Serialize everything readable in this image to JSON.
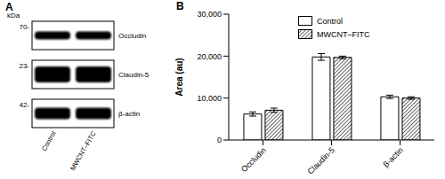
{
  "panel_a": {
    "label": "A",
    "unit": "kDa",
    "rows": [
      {
        "size": "70-",
        "protein": "Occludin"
      },
      {
        "size": "23-",
        "protein": "Claudin-5"
      },
      {
        "size": "42-",
        "protein": "β-actin"
      }
    ],
    "lanes": [
      "Control",
      "MWCNT–FITC"
    ]
  },
  "chart_data": {
    "type": "bar",
    "title": "B",
    "y_label": "Area (au)",
    "categories": [
      "Occludin",
      "Claudin-5",
      "β-actin"
    ],
    "series": [
      {
        "name": "Control",
        "color": "#ffffff",
        "values": [
          6200,
          19800,
          10300
        ],
        "errors": [
          500,
          800,
          400
        ]
      },
      {
        "name": "MWCNT–FITC",
        "color": "#000000",
        "values": [
          7100,
          19700,
          10000
        ],
        "errors": [
          500,
          300,
          300
        ]
      }
    ],
    "ylim": [
      0,
      30000
    ],
    "yticks": [
      0,
      {
        "value": 10000,
        "label": "10,000"
      },
      {
        "value": 20000,
        "label": "20,000"
      },
      {
        "value": 30000,
        "label": "30,000"
      }
    ],
    "grid": false,
    "legend": "upper right"
  }
}
